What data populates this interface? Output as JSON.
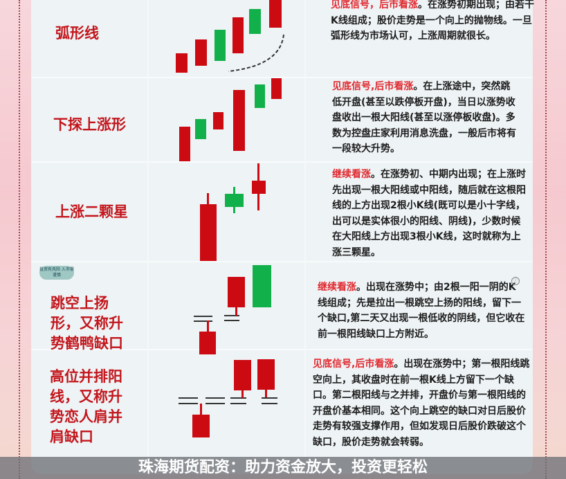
{
  "colors": {
    "accent": "#c3161c",
    "bull": "#cc0a12",
    "bear": "#12b04a",
    "highlight": "#e0282e"
  },
  "rows": [
    {
      "label": "弧形线",
      "signal": "见底信号，后市看涨",
      "text": "。在涨势初期出现；由若干K线组成；股价走势是一个向上的抛物线。一旦弧形线为市场认可，上涨周期就很长。"
    },
    {
      "label": "下探上涨形",
      "signal": "见底信号,后市看涨",
      "text": "。在上涨途中，突然跳低开盘(甚至以跌停板开盘)，当日以涨势收盘收出一根大阳线(甚至以涨停板收盘)。多数为控盘庄家利用消息洗盘，一般后市将有一段较大升势。"
    },
    {
      "label": "上涨二颗星",
      "signal": "继续看涨",
      "text": "。在涨势初、中期内出现；在上涨时先出现一根大阳线或中阳线，随后就在这根阳线的上方出现2根小K线(既可以是小十字线，出可以是实体很小的阳线、阴线)，少数时候在大阳线上方出现3根小K线，这时就称为上涨三颗星。"
    },
    {
      "label": "跳空上扬形，又称升势鹤鸭缺口",
      "signal": "继续看涨",
      "text": "。出现在涨势中；由2根一阳一阴的K线组成；先是拉出一根跳空上扬的阳线，留下一个缺口,第二天又出现一根低收的阴线，但它收在前一根阳线缺口上方附近。"
    },
    {
      "label": "高位并排阳线，又称升势恋人肩并肩缺口",
      "signal": "见底信号,后市看涨",
      "text": "。出现在涨势中；第一根阳线跳空向上，其收盘时在前一根K线上方留下一个缺口。第二根阳线与之并排，开盘价与第一根阳线的开盘价基本相同。这个向上跳空的缺口对日后股价走势有较强支撑作用，但如发现日后股价跌破这个缺口，股价走势就会转弱。"
    }
  ],
  "badge": "投资有风险 入市需谨慎",
  "banner": "珠海期货配资：助力资金放大，投资更轻松"
}
